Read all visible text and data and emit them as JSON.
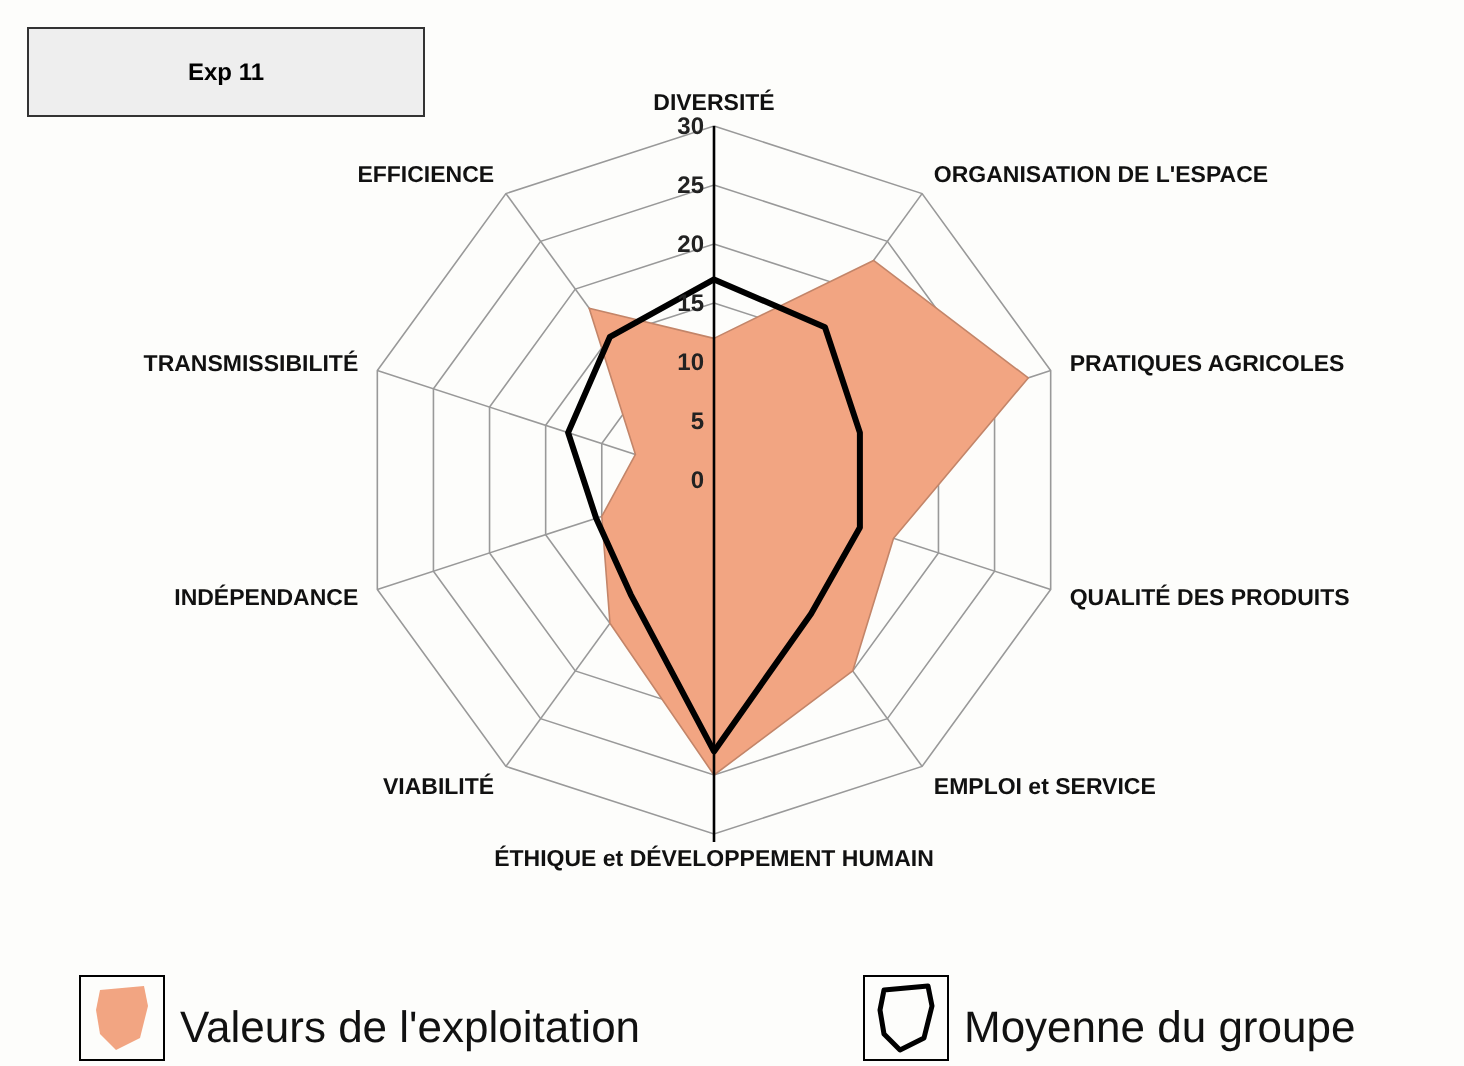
{
  "chart_data": {
    "type": "radar",
    "title": "Exp 11",
    "categories": [
      "DIVERSITÉ",
      "ORGANISATION DE L'ESPACE",
      "PRATIQUES AGRICOLES",
      "QUALITÉ DES PRODUITS",
      "EMPLOI et SERVICE",
      "ÉTHIQUE et DÉVELOPPEMENT HUMAIN",
      "VIABILITÉ",
      "INDÉPENDANCE",
      "TRANSMISSIBILITÉ",
      "EFFICIENCE"
    ],
    "series": [
      {
        "name": "Valeurs de l'exploitation",
        "color": "#f2a582",
        "values": [
          12,
          23,
          28,
          16,
          20,
          25,
          15,
          10,
          7,
          18
        ]
      },
      {
        "name": "Moyenne du groupe",
        "color": "#000000",
        "values": [
          17,
          16,
          13,
          13,
          14,
          23,
          12,
          10.5,
          13,
          15
        ]
      }
    ],
    "ylim": [
      0,
      30
    ],
    "yticks": [
      0,
      5,
      10,
      15,
      20,
      25,
      30
    ],
    "grid": true,
    "legend": "bottom"
  }
}
